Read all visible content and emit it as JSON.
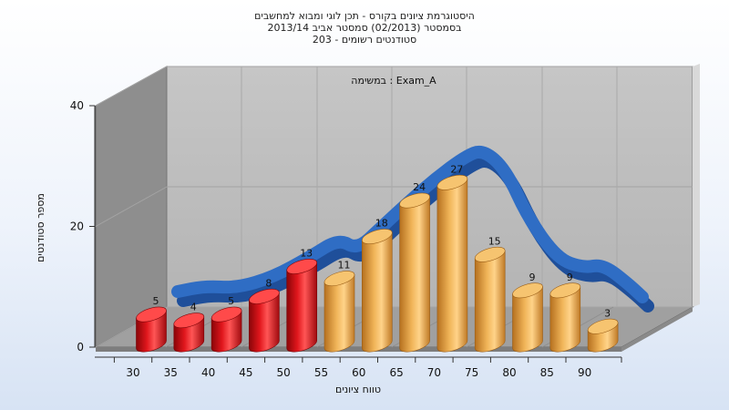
{
  "chart_data": {
    "type": "bar",
    "title_lines": [
      "היסטוגרמת ציונים בקורס - תכן לוגי ומבוא למחשבים",
      "בסמסטר  (02/2013)  סמסטר אביב 2013/14",
      "סטודנטים רשומים - 203"
    ],
    "annotation": "במשימה : Exam_A",
    "xlabel": "טווח ציונים",
    "ylabel": "מספר סטודנטים",
    "x_ticks": [
      "30",
      "35",
      "40",
      "45",
      "50",
      "55",
      "60",
      "65",
      "70",
      "75",
      "80",
      "85",
      "90"
    ],
    "y_ticks": [
      "0",
      "20",
      "40"
    ],
    "ylim": [
      0,
      40
    ],
    "categories": [
      30,
      35,
      40,
      45,
      50,
      55,
      60,
      65,
      70,
      75,
      80,
      85,
      90
    ],
    "values": [
      5,
      4,
      5,
      8,
      13,
      11,
      18,
      24,
      27,
      15,
      9,
      9,
      3
    ],
    "failing_max_category": 50,
    "colors": {
      "failing": "#e0161c",
      "passing": "#e8a640",
      "curve": "#2f6dc4",
      "back_wall": "#bdbdbd",
      "side_wall": "#8c8c8c",
      "floor": "#9a9a9a"
    },
    "curve": {
      "type": "smoothed-distribution"
    },
    "grid": true
  }
}
